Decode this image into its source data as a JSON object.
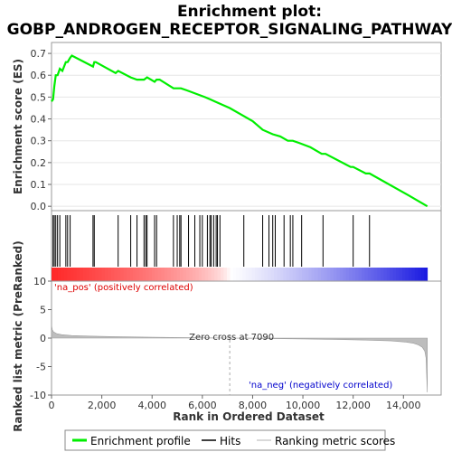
{
  "chart_data": {
    "type": "line",
    "title_line1": "Enrichment plot:",
    "title_line2": "GOBP_ANDROGEN_RECEPTOR_SIGNALING_PATHWAY",
    "top_panel": {
      "ylabel": "Enrichment score (ES)",
      "ylim": [
        -0.02,
        0.75
      ],
      "yticks": [
        0.0,
        0.1,
        0.2,
        0.3,
        0.4,
        0.5,
        0.6,
        0.7
      ],
      "ytick_labels": [
        "0.0",
        "0.1",
        "0.2",
        "0.3",
        "0.4",
        "0.5",
        "0.6",
        "0.7"
      ],
      "series_name": "Enrichment profile",
      "color": "#00ee00",
      "x": [
        0,
        60,
        110,
        170,
        240,
        330,
        430,
        570,
        640,
        740,
        810,
        1650,
        1700,
        1760,
        2550,
        2650,
        3150,
        3400,
        3550,
        3680,
        3800,
        4100,
        4180,
        4300,
        4850,
        5000,
        5150,
        5400,
        6100,
        6300,
        6500,
        7090,
        8000,
        8400,
        8800,
        9100,
        9400,
        9600,
        9850,
        10300,
        10750,
        10900,
        11900,
        12000,
        12500,
        12650,
        14200,
        14950
      ],
      "y": [
        0.48,
        0.49,
        0.55,
        0.6,
        0.6,
        0.63,
        0.62,
        0.66,
        0.66,
        0.68,
        0.69,
        0.64,
        0.66,
        0.66,
        0.61,
        0.62,
        0.59,
        0.58,
        0.58,
        0.58,
        0.59,
        0.57,
        0.58,
        0.58,
        0.54,
        0.54,
        0.54,
        0.53,
        0.5,
        0.49,
        0.48,
        0.45,
        0.39,
        0.35,
        0.33,
        0.32,
        0.3,
        0.3,
        0.29,
        0.27,
        0.24,
        0.24,
        0.18,
        0.18,
        0.15,
        0.15,
        0.05,
        0.0
      ]
    },
    "hits": {
      "series_name": "Hits",
      "positions": [
        60,
        110,
        170,
        240,
        330,
        570,
        640,
        740,
        1650,
        1700,
        2650,
        3150,
        3400,
        3680,
        3750,
        3800,
        4100,
        4180,
        4850,
        5000,
        5100,
        5150,
        5450,
        5700,
        5900,
        6000,
        6200,
        6300,
        6350,
        6450,
        6550,
        6600,
        6700,
        7650,
        8400,
        8650,
        8800,
        8900,
        9250,
        9500,
        9600,
        9950,
        10800,
        12000,
        12650
      ]
    },
    "bottom_panel": {
      "ylabel": "Ranked list metric (PreRanked)",
      "ylim": [
        -10,
        10
      ],
      "yticks": [
        10,
        5,
        0,
        -5,
        -10
      ],
      "ytick_labels": [
        "10",
        "5",
        "0",
        "-5",
        "-10"
      ],
      "series_name": "Ranking metric scores",
      "x": [
        0,
        30,
        80,
        200,
        400,
        800,
        1500,
        2500,
        4000,
        5500,
        7090,
        8500,
        10000,
        11500,
        12500,
        13500,
        14100,
        14400,
        14600,
        14750,
        14850,
        14900,
        14950
      ],
      "y": [
        2.3,
        1.5,
        1.1,
        0.8,
        0.6,
        0.45,
        0.35,
        0.25,
        0.15,
        0.08,
        0.0,
        -0.08,
        -0.15,
        -0.25,
        -0.35,
        -0.5,
        -0.7,
        -0.9,
        -1.2,
        -1.6,
        -2.3,
        -3.5,
        -9.5
      ],
      "zero_cross_label": "Zero cross at 7090",
      "zero_cross": 7090,
      "pos_label": "'na_pos' (positively correlated)",
      "neg_label": "'na_neg' (negatively correlated)"
    },
    "xlabel": "Rank in Ordered Dataset",
    "xlim": [
      0,
      15500
    ],
    "xticks": [
      0,
      2000,
      4000,
      6000,
      8000,
      10000,
      12000,
      14000
    ],
    "xtick_labels": [
      "0",
      "2,000",
      "4,000",
      "6,000",
      "8,000",
      "10,000",
      "12,000",
      "14,000"
    ],
    "legend": {
      "placement": "bottom",
      "entries": [
        "Enrichment profile",
        "Hits",
        "Ranking metric scores"
      ]
    }
  }
}
